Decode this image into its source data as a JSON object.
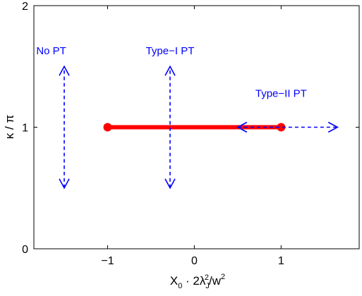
{
  "chart_data": {
    "type": "line",
    "xlabel": {
      "base": "X",
      "sub0": "0",
      "mid": " · 2λ",
      "sub1": "J",
      "sup1": "2",
      "tail": "/w",
      "sup2": "2"
    },
    "ylabel": "κ / π",
    "xlim": [
      -1.85,
      1.9
    ],
    "ylim": [
      0,
      2
    ],
    "x_ticks": [
      {
        "value": -1,
        "label": "−1"
      },
      {
        "value": 0,
        "label": "0"
      },
      {
        "value": 1,
        "label": "1"
      }
    ],
    "y_ticks": [
      {
        "value": 0,
        "label": "0"
      },
      {
        "value": 1,
        "label": "1"
      },
      {
        "value": 2,
        "label": "2"
      }
    ],
    "grid": false,
    "series": [
      {
        "x": [
          -1,
          1
        ],
        "y": [
          1,
          1
        ],
        "style": "solid",
        "color": "#ff0000",
        "markers": "circle"
      }
    ],
    "arrows": [
      {
        "x": [
          -1.5,
          -1.5
        ],
        "y": [
          0.5,
          1.5
        ],
        "style": "dashed",
        "color": "#0000ff",
        "heads": "both"
      },
      {
        "x": [
          -0.28,
          -0.28
        ],
        "y": [
          0.5,
          1.5
        ],
        "style": "dashed",
        "color": "#0000ff",
        "heads": "both"
      },
      {
        "x": [
          0.5,
          1.65
        ],
        "y": [
          1,
          1
        ],
        "style": "dashed",
        "color": "#0000ff",
        "heads": "both"
      }
    ],
    "annotations": [
      {
        "text": "No PT",
        "x": -1.65,
        "y": 1.6,
        "color": "#0000ff"
      },
      {
        "text": "Type−I PT",
        "x": -0.28,
        "y": 1.6,
        "color": "#0000ff"
      },
      {
        "text": "Type−II PT",
        "x": 1.0,
        "y": 1.25,
        "color": "#0000ff"
      }
    ]
  }
}
